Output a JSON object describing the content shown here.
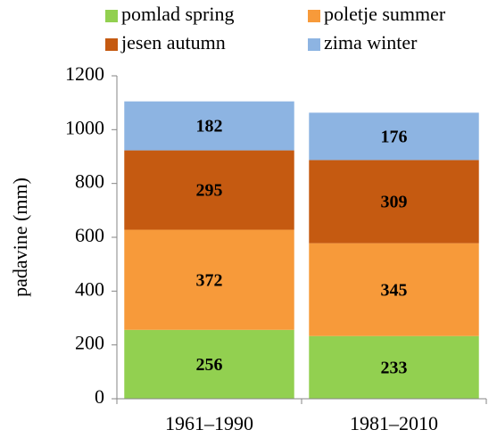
{
  "chart_data": {
    "type": "stacked-bar",
    "y_label": "padavine (mm)",
    "categories": [
      "1961–1990",
      "1981–2010"
    ],
    "series": [
      {
        "name": "pomlad spring",
        "color": "#92d050",
        "values": [
          256,
          233
        ]
      },
      {
        "name": "poletje summer",
        "color": "#f79a3a",
        "values": [
          372,
          345
        ]
      },
      {
        "name": "jesen autumn",
        "color": "#c55a11",
        "values": [
          295,
          309
        ]
      },
      {
        "name": "zima winter",
        "color": "#8db4e2",
        "values": [
          182,
          176
        ]
      }
    ],
    "ylim": [
      0,
      1200
    ],
    "yticks": [
      0,
      200,
      400,
      600,
      800,
      1000,
      1200
    ]
  }
}
